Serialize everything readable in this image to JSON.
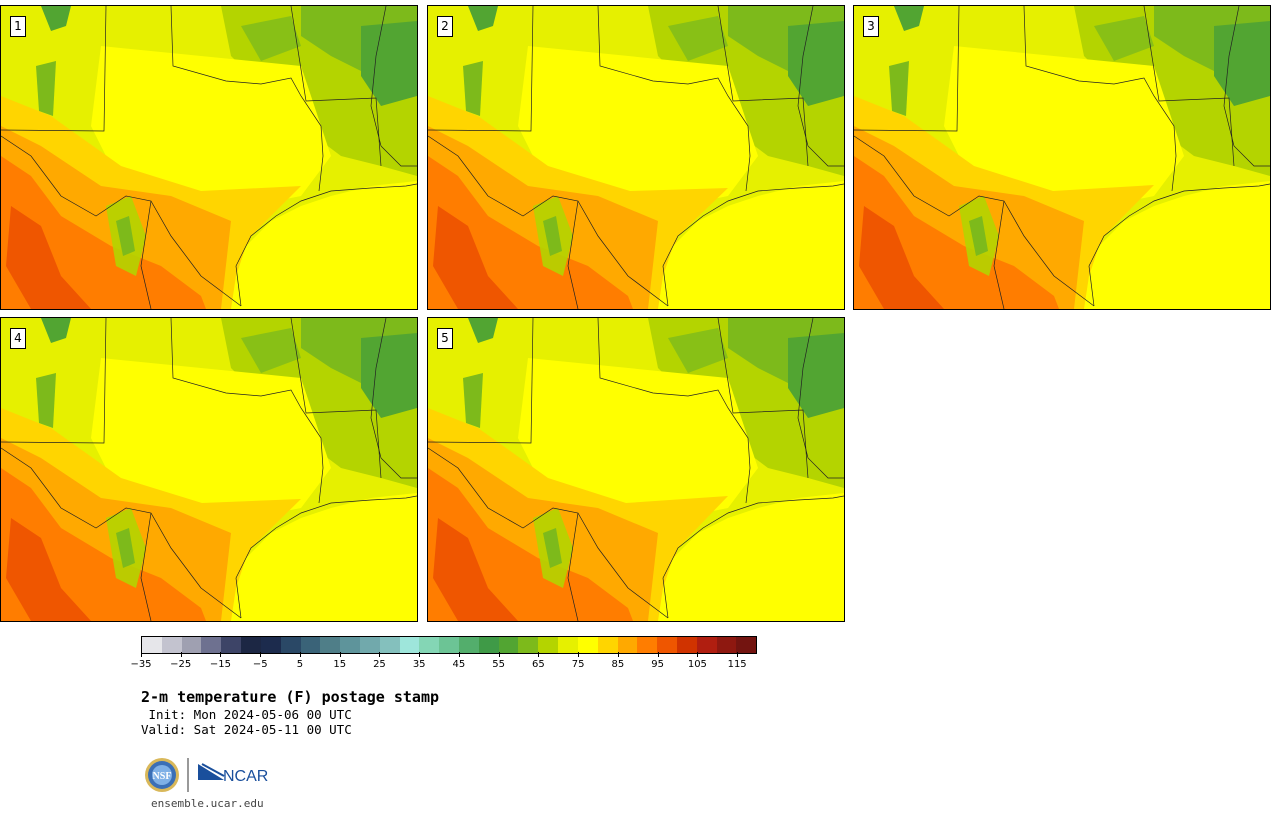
{
  "panels": [
    {
      "label": "1"
    },
    {
      "label": "2"
    },
    {
      "label": "3"
    },
    {
      "label": "4"
    },
    {
      "label": "5"
    }
  ],
  "colorbar": {
    "colors": [
      "#e6e6ea",
      "#c3c3cf",
      "#9fa0b1",
      "#6e7190",
      "#3d4467",
      "#1c2744",
      "#1c2b4d",
      "#2a4866",
      "#3a6378",
      "#4f7e88",
      "#5e949b",
      "#71a9ac",
      "#84c0bd",
      "#9ee6db",
      "#84d6b5",
      "#6cc495",
      "#53ae6c",
      "#3f9a47",
      "#52a532",
      "#7dba1b",
      "#b4d400",
      "#e6f000",
      "#ffff00",
      "#ffd500",
      "#ffa900",
      "#ff7d00",
      "#ef5600",
      "#d03300",
      "#b01e10",
      "#8e1810",
      "#731410"
    ],
    "tick_labels": [
      "−35",
      "−25",
      "−15",
      "−5",
      "5",
      "15",
      "25",
      "35",
      "45",
      "55",
      "65",
      "75",
      "85",
      "95",
      "105",
      "115"
    ]
  },
  "title": "2-m temperature (F) postage stamp",
  "init": " Init: Mon 2024-05-06 00 UTC",
  "valid": "Valid: Sat 2024-05-11 00 UTC",
  "logos": {
    "nsf": "NSF",
    "ncar": "NCAR"
  },
  "url": "ensemble.ucar.edu"
}
